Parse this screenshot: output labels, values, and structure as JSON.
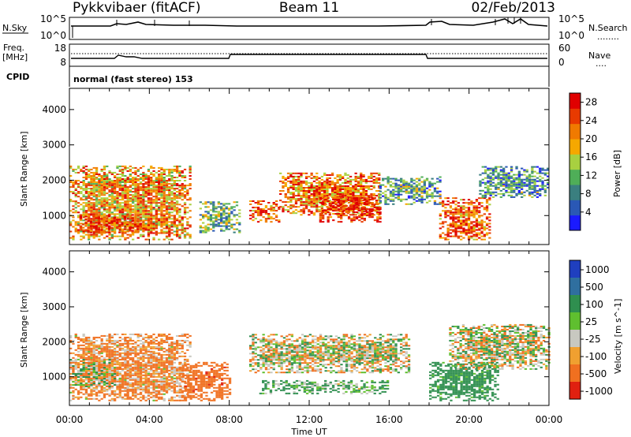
{
  "header": {
    "station": "Pykkvibaer (fitACF)",
    "beam": "Beam 11",
    "date": "02/Feb/2013"
  },
  "nsky_panel": {
    "left_label": "N.Sky",
    "left_ticks": [
      "10^5",
      "10^0"
    ],
    "right_ticks": [
      "10^5",
      "10^0"
    ],
    "right_label": "N.Search",
    "right_marker": "........"
  },
  "freq_panel": {
    "left_label_line1": "Freq.",
    "left_label_line2": "[MHz]",
    "left_ticks": [
      "18",
      "8"
    ],
    "right_ticks": [
      "60",
      "0"
    ],
    "right_label": "Nave",
    "right_marker": "....",
    "cpid_label": "CPID",
    "cpid_text": "normal (fast stereo) 153"
  },
  "time_axis": {
    "title": "Time UT",
    "ticks": [
      "00:00",
      "04:00",
      "08:00",
      "12:00",
      "16:00",
      "20:00",
      "00:00"
    ]
  },
  "chart_data": [
    {
      "type": "heatmap",
      "title": "",
      "xlabel": "Time UT",
      "ylabel": "Slant Range [km]",
      "x_ticks": [
        "00:00",
        "04:00",
        "08:00",
        "12:00",
        "16:00",
        "20:00",
        "00:00"
      ],
      "x_range_hours": [
        0,
        24
      ],
      "y_ticks": [
        1000,
        2000,
        3000,
        4000
      ],
      "ylim": [
        180,
        4600
      ],
      "colorbar": {
        "label": "Power [dB]",
        "ticks": [
          4,
          8,
          12,
          16,
          20,
          24,
          28
        ],
        "range": [
          0,
          30
        ],
        "colors": [
          "#1a1aff",
          "#2a58b5",
          "#3a7f7f",
          "#4fae58",
          "#a8d040",
          "#f5a800",
          "#f07a00",
          "#e83a00",
          "#e00000"
        ]
      },
      "echo_regions": [
        {
          "t0": 0.0,
          "t1": 6.0,
          "r0": 300,
          "r1": 2400,
          "level": 20
        },
        {
          "t0": 0.5,
          "t1": 3.5,
          "r0": 500,
          "r1": 1000,
          "level": 26
        },
        {
          "t0": 6.5,
          "t1": 8.5,
          "r0": 500,
          "r1": 1400,
          "level": 12
        },
        {
          "t0": 9.0,
          "t1": 10.5,
          "r0": 800,
          "r1": 1400,
          "level": 24
        },
        {
          "t0": 10.5,
          "t1": 15.5,
          "r0": 1000,
          "r1": 2200,
          "level": 22
        },
        {
          "t0": 12.5,
          "t1": 15.5,
          "r0": 800,
          "r1": 1500,
          "level": 27
        },
        {
          "t0": 15.5,
          "t1": 18.5,
          "r0": 1300,
          "r1": 2100,
          "level": 10
        },
        {
          "t0": 18.5,
          "t1": 21.0,
          "r0": 300,
          "r1": 1500,
          "level": 24
        },
        {
          "t0": 20.5,
          "t1": 24.0,
          "r0": 1500,
          "r1": 2400,
          "level": 9
        }
      ]
    },
    {
      "type": "heatmap",
      "title": "",
      "xlabel": "Time UT",
      "ylabel": "Slant Range [km]",
      "x_ticks": [
        "00:00",
        "04:00",
        "08:00",
        "12:00",
        "16:00",
        "20:00",
        "00:00"
      ],
      "x_range_hours": [
        0,
        24
      ],
      "y_ticks": [
        1000,
        2000,
        3000,
        4000
      ],
      "ylim": [
        180,
        4600
      ],
      "colorbar": {
        "label": "Velocity [m s^-1]",
        "ticks": [
          "1000",
          "500",
          "100",
          "25",
          "-25",
          "-100",
          "-500",
          "-1000"
        ],
        "colors": [
          "#1f3fbf",
          "#2f6f9f",
          "#2f8f4f",
          "#5fbf2f",
          "#c8c8c0",
          "#f0a030",
          "#f07020",
          "#e02010"
        ]
      },
      "echo_regions": [
        {
          "t0": 0.0,
          "t1": 6.0,
          "r0": 300,
          "r1": 2200,
          "velocity": -80
        },
        {
          "t0": 0.0,
          "t1": 2.5,
          "r0": 700,
          "r1": 1500,
          "velocity": 0
        },
        {
          "t0": 5.5,
          "t1": 8.0,
          "r0": 300,
          "r1": 1400,
          "velocity": -200
        },
        {
          "t0": 9.0,
          "t1": 17.0,
          "r0": 1100,
          "r1": 2200,
          "velocity": 0
        },
        {
          "t0": 9.5,
          "t1": 16.0,
          "r0": 500,
          "r1": 900,
          "velocity": 80
        },
        {
          "t0": 18.0,
          "t1": 21.5,
          "r0": 300,
          "r1": 1400,
          "velocity": 150
        },
        {
          "t0": 19.0,
          "t1": 24.0,
          "r0": 1200,
          "r1": 2500,
          "velocity": 0
        }
      ]
    }
  ]
}
